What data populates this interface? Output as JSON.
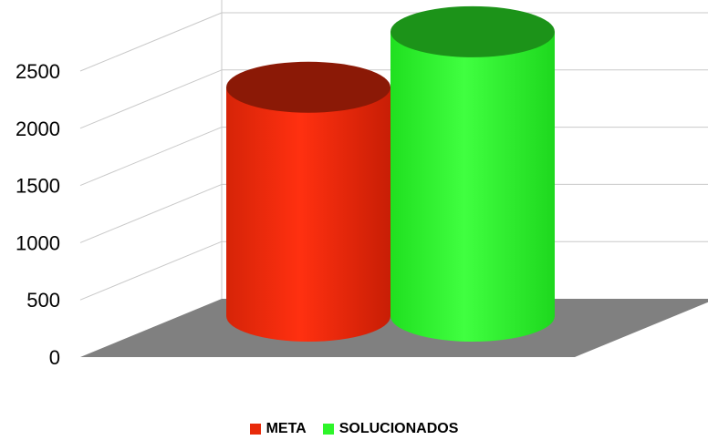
{
  "chart_data": {
    "type": "bar",
    "style": "3d-cylinder",
    "categories": [
      ""
    ],
    "series": [
      {
        "name": "META",
        "values": [
          2000
        ],
        "color": "#E82A0A"
      },
      {
        "name": "SOLUCIONADOS",
        "values": [
          2485
        ],
        "color": "#2EF52A"
      }
    ],
    "title": "",
    "xlabel": "",
    "ylabel": "",
    "ylim": [
      0,
      2500
    ],
    "yticks": [
      "0",
      "500",
      "1000",
      "1500",
      "2000",
      "2500"
    ],
    "grid": true,
    "floor_color": "#808080",
    "legend_position": "bottom-center"
  }
}
